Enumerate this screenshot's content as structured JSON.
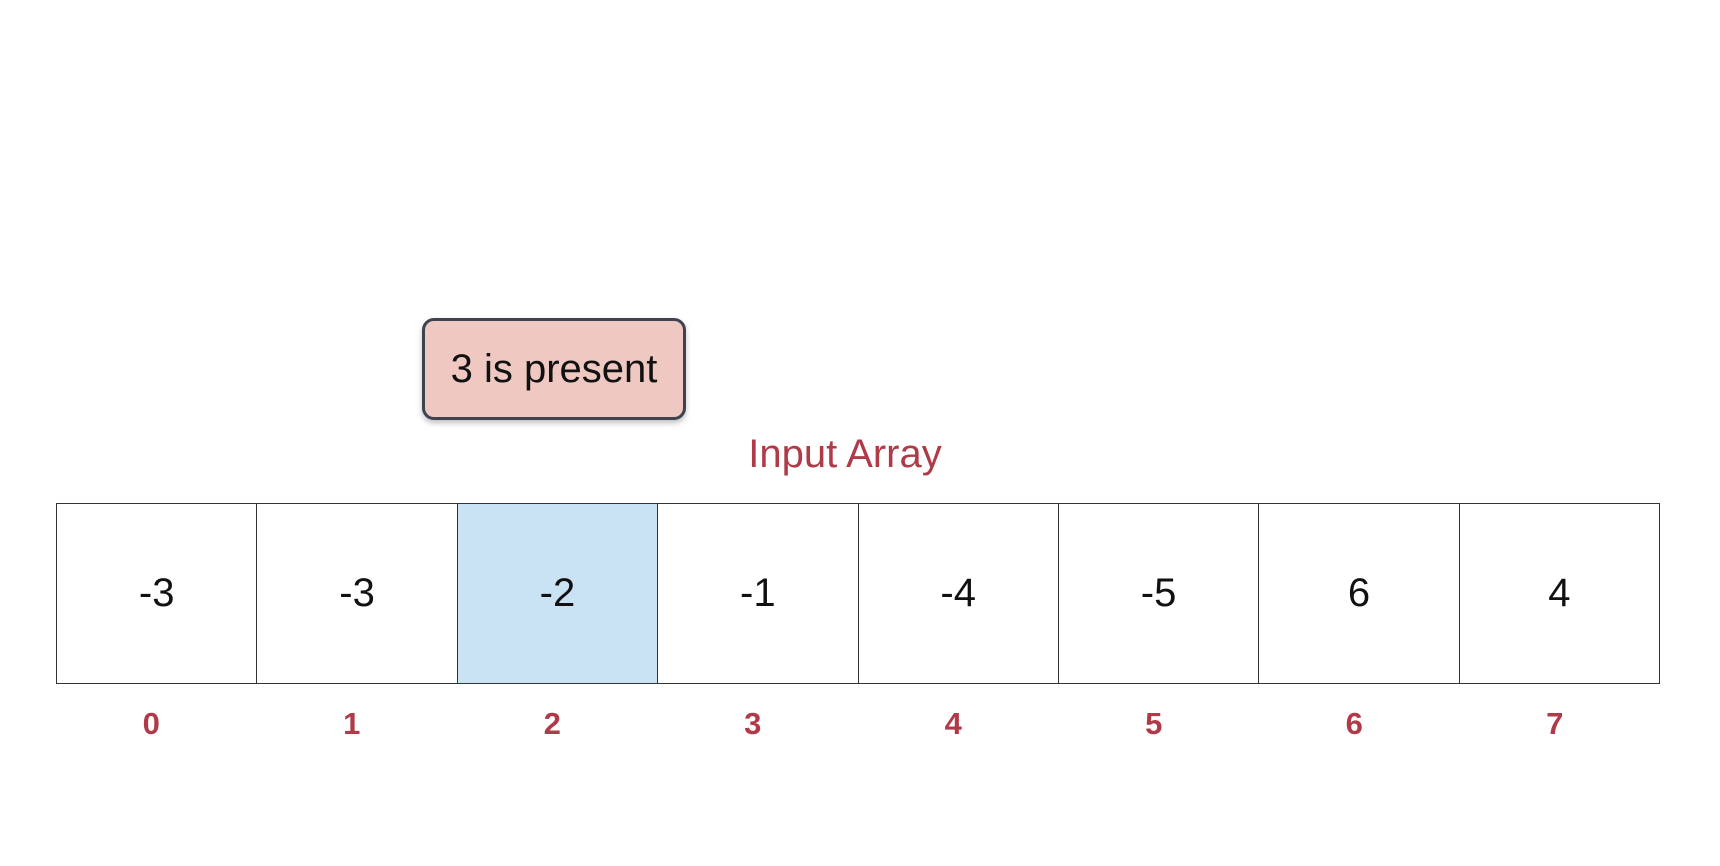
{
  "callout": {
    "text": "3 is present",
    "background": "#efc8c2",
    "border": "#3d4450"
  },
  "array": {
    "title": "Input Array",
    "title_color": "#b03a48",
    "highlight_color": "#c9e2f4",
    "highlighted_index": 2,
    "cells": [
      {
        "value": "-3",
        "index": "0"
      },
      {
        "value": "-3",
        "index": "1"
      },
      {
        "value": "-2",
        "index": "2"
      },
      {
        "value": "-1",
        "index": "3"
      },
      {
        "value": "-4",
        "index": "4"
      },
      {
        "value": "-5",
        "index": "5"
      },
      {
        "value": "6",
        "index": "6"
      },
      {
        "value": "4",
        "index": "7"
      }
    ]
  }
}
